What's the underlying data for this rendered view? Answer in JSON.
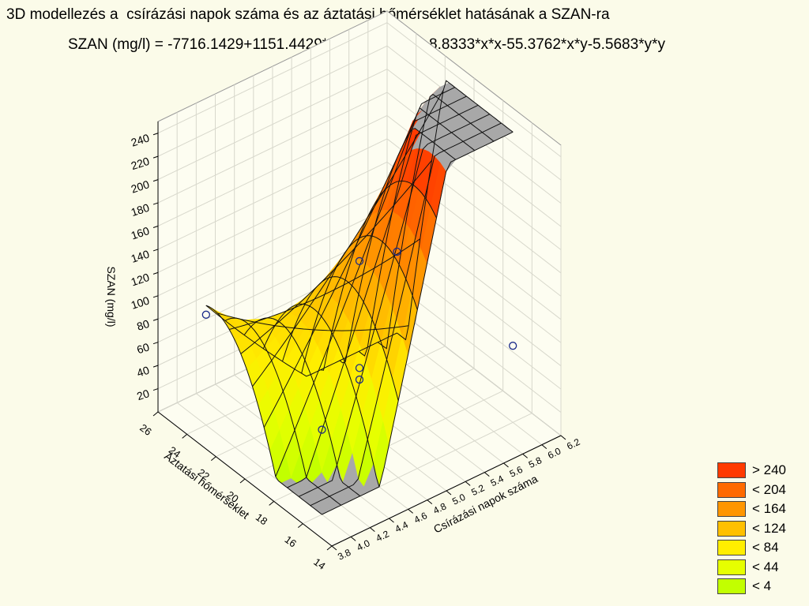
{
  "title": "3D modellezés a  csírázási napok száma és az áztatási hőmérséklet hatásának a SZAN-ra",
  "formula": "SZAN (mg/l) = -7716.1429+1151.4429*x+483.1444*y+8.8333*x*x-55.3762*x*y-5.5683*y*y",
  "chart_data": {
    "type": "surface3d",
    "title": "3D modellezés a  csírázási napok száma és az áztatási hőmérséklet hatásának a SZAN-ra",
    "equation": "SZAN (mg/l) = -7716.1429+1151.4429*x+483.1444*y+8.8333*x*x-55.3762*x*y-5.5683*y*y",
    "coefficients": {
      "c": -7716.1429,
      "x": 1151.4429,
      "y": 483.1444,
      "xx": 8.8333,
      "xy": -55.3762,
      "yy": -5.5683
    },
    "xlabel": "Csírázási napok száma",
    "ylabel": "Áztatási hőmérséklet",
    "zlabel": "SZAN (mg/l)",
    "xlim": [
      3.8,
      6.2
    ],
    "ylim": [
      14,
      26
    ],
    "zlim": [
      0,
      250
    ],
    "x_ticks": [
      "3.8",
      "4.0",
      "4.2",
      "4.4",
      "4.6",
      "4.8",
      "5.0",
      "5.2",
      "5.4",
      "5.6",
      "5.8",
      "6.0",
      "6.2"
    ],
    "y_ticks": [
      "14",
      "16",
      "18",
      "20",
      "22",
      "24",
      "26"
    ],
    "z_ticks": [
      "20",
      "40",
      "60",
      "80",
      "100",
      "120",
      "140",
      "160",
      "180",
      "200",
      "220",
      "240"
    ],
    "surface_x_range": [
      4.0,
      6.0
    ],
    "surface_y_range": [
      16,
      24
    ],
    "points": [
      {
        "x": 4,
        "y": 16,
        "z": 73
      },
      {
        "x": 4,
        "y": 24,
        "z": 95
      },
      {
        "x": 6,
        "y": 16,
        "z": 66
      },
      {
        "x": 6,
        "y": 24,
        "z": 70
      },
      {
        "x": 5,
        "y": 20,
        "z": 140
      },
      {
        "x": 5,
        "y": 20,
        "z": 48
      },
      {
        "x": 5,
        "y": 20,
        "z": 38
      }
    ],
    "legend": [
      {
        "label": "> 240",
        "color": "#ff3a00"
      },
      {
        "label": "< 204",
        "color": "#ff6a00"
      },
      {
        "label": "< 164",
        "color": "#ff9600"
      },
      {
        "label": "< 124",
        "color": "#ffc000"
      },
      {
        "label": "< 84",
        "color": "#ffee00"
      },
      {
        "label": "< 44",
        "color": "#e6ff00"
      },
      {
        "label": "< 4",
        "color": "#c2ff00"
      }
    ],
    "grid": true,
    "legend_position": "bottom-right",
    "colors": {
      "below_range": "#a8a8a8",
      "above_range": "#a8a8a8",
      "mesh": "#111111",
      "background": "#fbfbe9"
    }
  }
}
